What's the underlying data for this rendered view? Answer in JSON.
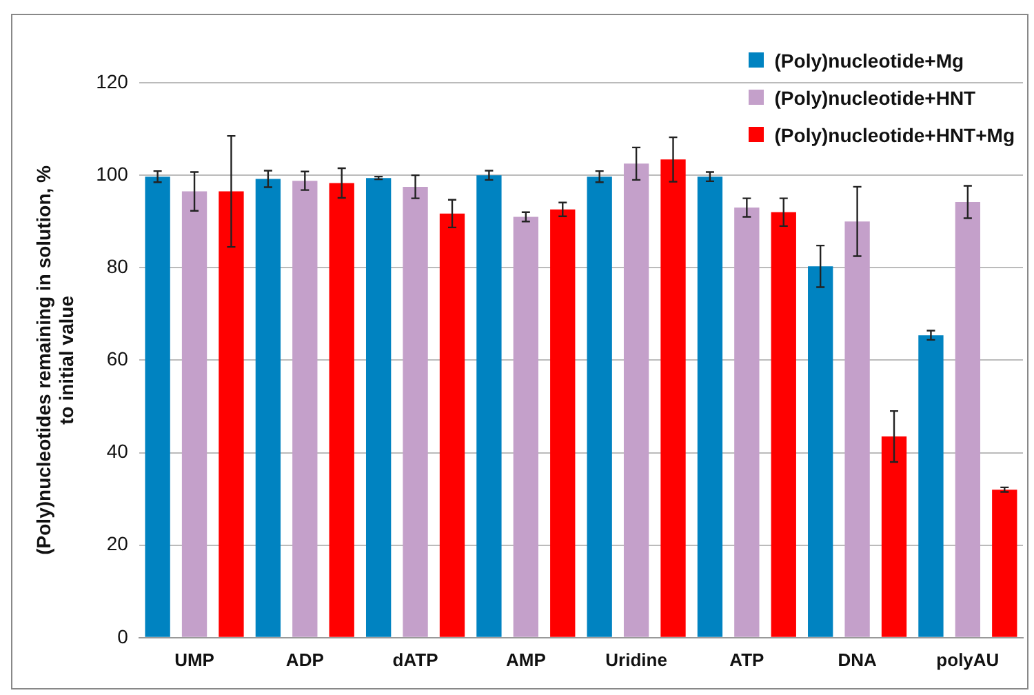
{
  "chart_data": {
    "type": "bar",
    "ylabel": "(Poly)nucleotides remaining in solution, %\nto initial value",
    "categories": [
      "UMP",
      "ADP",
      "dATP",
      "AMP",
      "Uridine",
      "ATP",
      "DNA",
      "polyAU"
    ],
    "series": [
      {
        "name": "(Poly)nucleotide+Mg",
        "color": "#0083c1",
        "values": [
          99.7,
          99.2,
          99.4,
          100,
          99.7,
          99.7,
          80.3,
          65.4
        ],
        "errors": [
          1.2,
          1.8,
          0.3,
          1,
          1.2,
          1,
          4.5,
          1
        ]
      },
      {
        "name": "(Poly)nucleotide+HNT",
        "color": "#c4a0ca",
        "values": [
          96.5,
          98.8,
          97.5,
          91,
          102.5,
          93,
          90,
          94.2
        ],
        "errors": [
          4.2,
          2,
          2.5,
          1,
          3.5,
          2,
          7.5,
          3.5
        ]
      },
      {
        "name": "(Poly)nucleotide+HNT+Mg",
        "color": "#ff0000",
        "values": [
          96.5,
          98.3,
          91.7,
          92.6,
          103.4,
          92,
          43.5,
          32
        ],
        "errors": [
          12,
          3.2,
          3,
          1.5,
          4.8,
          3,
          5.5,
          0.5
        ]
      }
    ],
    "ylim": [
      0,
      120
    ],
    "yticks": [
      0,
      20,
      40,
      60,
      80,
      100,
      120
    ],
    "grid": "y",
    "legend": "top right"
  }
}
